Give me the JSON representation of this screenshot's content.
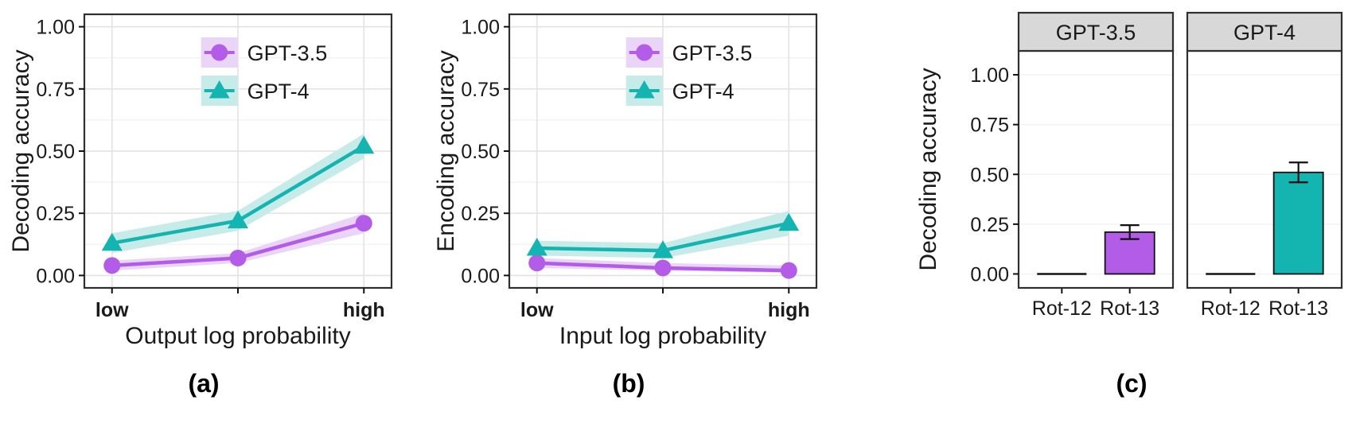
{
  "figure": {
    "captions": {
      "a": "(a)",
      "b": "(b)",
      "c": "(c)"
    }
  },
  "colors": {
    "gpt35": "#b35ce8",
    "gpt35_ribbon": "#ead4f8",
    "gpt4": "#14b5b1",
    "gpt4_ribbon": "#c7ebe9",
    "grid_major": "#e4e4e4",
    "grid_minor": "#f1f1f1",
    "panel_border": "#2f2f2f",
    "strip_fill": "#d8d8d8",
    "text": "#1a1a1a"
  },
  "chart_data": [
    {
      "id": "a",
      "type": "line",
      "title": "",
      "xlabel": "Output log probability",
      "ylabel": "Decoding accuracy",
      "x_tick_labels": [
        "low",
        "",
        "high"
      ],
      "ylim": [
        0,
        1
      ],
      "yticks": [
        0,
        0.25,
        0.5,
        0.75,
        1
      ],
      "legend_position": "inside-top-center",
      "legend": [
        "GPT-3.5",
        "GPT-4"
      ],
      "series": [
        {
          "name": "GPT-3.5",
          "marker": "circle",
          "color": "#b35ce8",
          "ribbon_color": "#ead4f8",
          "values": [
            0.04,
            0.07,
            0.21
          ],
          "ribbon_low": [
            0.02,
            0.05,
            0.17
          ],
          "ribbon_high": [
            0.06,
            0.09,
            0.25
          ]
        },
        {
          "name": "GPT-4",
          "marker": "triangle",
          "color": "#14b5b1",
          "ribbon_color": "#c7ebe9",
          "values": [
            0.13,
            0.22,
            0.52
          ],
          "ribbon_low": [
            0.09,
            0.18,
            0.47
          ],
          "ribbon_high": [
            0.17,
            0.26,
            0.57
          ]
        }
      ],
      "caption": "(a)"
    },
    {
      "id": "b",
      "type": "line",
      "title": "",
      "xlabel": "Input log probability",
      "ylabel": "Encoding accuracy",
      "x_tick_labels": [
        "low",
        "",
        "high"
      ],
      "ylim": [
        0,
        1
      ],
      "yticks": [
        0,
        0.25,
        0.5,
        0.75,
        1
      ],
      "legend_position": "inside-top-center",
      "legend": [
        "GPT-3.5",
        "GPT-4"
      ],
      "series": [
        {
          "name": "GPT-3.5",
          "marker": "circle",
          "color": "#b35ce8",
          "ribbon_color": "#ead4f8",
          "values": [
            0.05,
            0.03,
            0.02
          ],
          "ribbon_low": [
            0.03,
            0.02,
            0.01
          ],
          "ribbon_high": [
            0.07,
            0.05,
            0.04
          ]
        },
        {
          "name": "GPT-4",
          "marker": "triangle",
          "color": "#14b5b1",
          "ribbon_color": "#c7ebe9",
          "values": [
            0.11,
            0.1,
            0.21
          ],
          "ribbon_low": [
            0.08,
            0.07,
            0.16
          ],
          "ribbon_high": [
            0.14,
            0.13,
            0.26
          ]
        }
      ],
      "caption": "(b)"
    },
    {
      "id": "c",
      "type": "bar",
      "title": "",
      "xlabel": "",
      "ylabel": "Decoding accuracy",
      "categories": [
        "Rot-12",
        "Rot-13"
      ],
      "ylim": [
        0,
        1
      ],
      "yticks": [
        0,
        0.25,
        0.5,
        0.75,
        1
      ],
      "facets": [
        {
          "label": "GPT-3.5",
          "bar_color": "#b35ce8",
          "values": [
            0.003,
            0.21
          ],
          "errors": [
            0,
            0.035
          ]
        },
        {
          "label": "GPT-4",
          "bar_color": "#14b5b1",
          "values": [
            0.003,
            0.51
          ],
          "errors": [
            0,
            0.05
          ]
        }
      ],
      "caption": "(c)"
    }
  ]
}
